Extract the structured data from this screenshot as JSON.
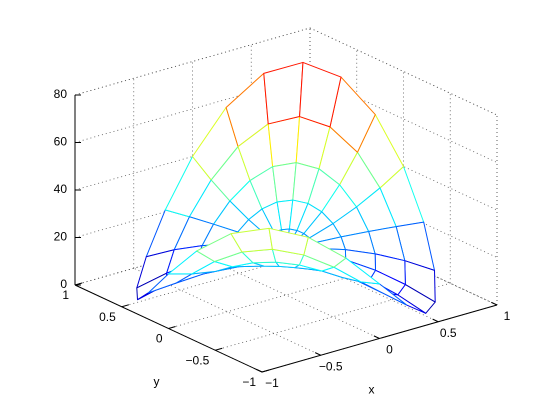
{
  "chart_data": {
    "type": "mesh3d",
    "xlabel": "x",
    "ylabel": "y",
    "xlim": [
      -1,
      1
    ],
    "ylim": [
      -1,
      1
    ],
    "zlim": [
      0,
      80
    ],
    "xticks": [
      {
        "value": -1,
        "label": "−1"
      },
      {
        "value": -0.5,
        "label": "−0.5"
      },
      0,
      0.5,
      1
    ],
    "yticks": [
      {
        "value": -1,
        "label": "−1"
      },
      {
        "value": -0.5,
        "label": "−0.5"
      },
      0,
      0.5,
      1
    ],
    "zticks": [
      0,
      20,
      40,
      60,
      80
    ],
    "grid": true,
    "colormap": "jet",
    "r": [
      0,
      0.2,
      0.4,
      0.6,
      0.8,
      1
    ],
    "theta_deg": [
      0,
      15,
      30,
      45,
      60,
      75,
      90,
      105,
      120,
      135,
      150,
      165,
      180,
      195,
      210,
      225,
      240,
      255,
      270,
      285,
      300,
      315,
      330,
      345
    ],
    "z": [
      [
        19,
        19,
        19,
        19,
        19,
        19,
        19,
        19,
        19,
        19,
        19,
        19,
        19,
        19,
        19,
        19,
        19,
        19,
        19,
        19,
        19,
        19,
        19,
        19
      ],
      [
        21.2,
        22.2,
        22.9,
        23.2,
        22.9,
        22.2,
        21.2,
        20.1,
        19.0,
        18.2,
        17.8,
        17.7,
        17.8,
        18.1,
        18.3,
        18.4,
        18.3,
        18.1,
        17.8,
        17.7,
        17.8,
        18.2,
        19.0,
        20.1
      ],
      [
        24.4,
        27.7,
        30.0,
        30.8,
        30.0,
        27.7,
        24.4,
        20.9,
        17.9,
        16.0,
        15.4,
        16.1,
        17.6,
        19.4,
        20.7,
        21.2,
        20.7,
        19.4,
        17.6,
        16.1,
        15.4,
        16.0,
        17.9,
        20.9
      ],
      [
        28.6,
        35.4,
        40.3,
        42.0,
        40.3,
        35.4,
        28.6,
        21.4,
        15.5,
        12.2,
        11.8,
        14.2,
        18.4,
        22.9,
        26.4,
        27.6,
        26.4,
        22.9,
        18.4,
        14.2,
        11.8,
        12.2,
        15.5,
        21.4
      ],
      [
        33.8,
        45.4,
        53.7,
        56.8,
        53.7,
        45.4,
        33.8,
        21.7,
        12.0,
        6.8,
        7.1,
        12.1,
        20.2,
        28.8,
        35.2,
        37.6,
        35.2,
        28.8,
        20.2,
        12.1,
        7.1,
        6.8,
        12.0,
        21.7
      ],
      [
        40.0,
        57.6,
        70.4,
        75.0,
        70.4,
        57.6,
        40.0,
        21.8,
        7.3,
        0.0,
        1.1,
        9.8,
        23.0,
        36.9,
        47.2,
        51.0,
        47.2,
        36.9,
        23.0,
        9.8,
        1.1,
        0.0,
        7.3,
        21.8
      ]
    ]
  }
}
